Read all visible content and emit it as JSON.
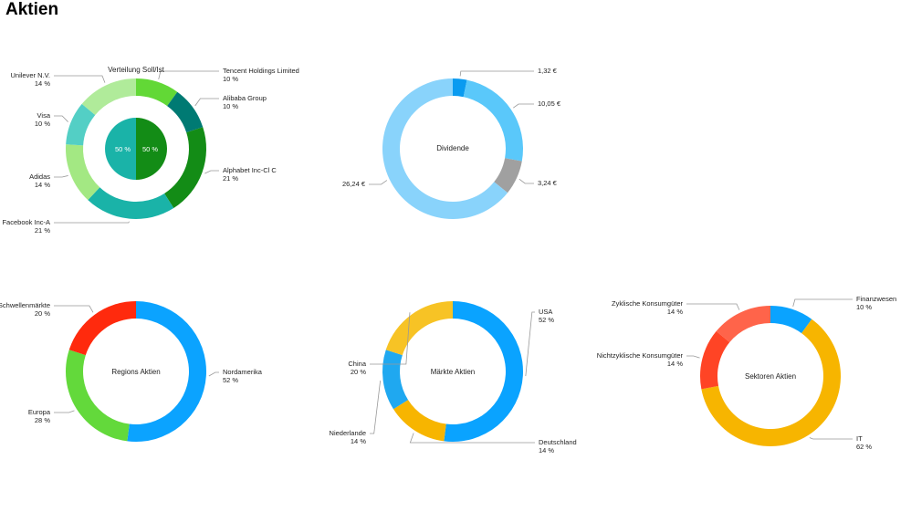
{
  "page_title": "Aktien",
  "chart_data": [
    {
      "type": "donut",
      "title": "Verteilung Soll/Ist",
      "slices": [
        {
          "label": "Tencent Holdings Limited",
          "value": 10,
          "value_label": "10 %",
          "color": "#62d836"
        },
        {
          "label": "Alibaba Group",
          "value": 10,
          "value_label": "10 %",
          "color": "#007a73"
        },
        {
          "label": "Alphabet Inc-Cl C",
          "value": 21,
          "value_label": "21 %",
          "color": "#138c16"
        },
        {
          "label": "Facebook Inc-A",
          "value": 21,
          "value_label": "21 %",
          "color": "#1ab3a8"
        },
        {
          "label": "Adidas",
          "value": 14,
          "value_label": "14 %",
          "color": "#a3e883"
        },
        {
          "label": "Visa",
          "value": 10,
          "value_label": "10 %",
          "color": "#53cfc5"
        },
        {
          "label": "Unilever N.V.",
          "value": 14,
          "value_label": "14 %",
          "color": "#b0eb9a"
        }
      ],
      "inner": [
        {
          "value": 50,
          "value_label": "50 %",
          "color": "#138c16"
        },
        {
          "value": 50,
          "value_label": "50 %",
          "color": "#1ab3a8"
        }
      ]
    },
    {
      "type": "donut",
      "title": "Dividende",
      "slices": [
        {
          "value": 1.32,
          "value_label": "1,32 €",
          "color": "#0a9bf0"
        },
        {
          "value": 10.05,
          "value_label": "10,05 €",
          "color": "#5ac8fa"
        },
        {
          "value": 3.24,
          "value_label": "3,24 €",
          "color": "#a0a0a0"
        },
        {
          "value": 26.24,
          "value_label": "26,24 €",
          "color": "#89d3fb"
        }
      ]
    },
    {
      "type": "donut",
      "title": "Regions Aktien",
      "slices": [
        {
          "label": "Nordamerika",
          "value": 52,
          "value_label": "52 %",
          "color": "#0ba3ff"
        },
        {
          "label": "Europa",
          "value": 28,
          "value_label": "28 %",
          "color": "#63d93b"
        },
        {
          "label": "Schwellenmärkte",
          "value": 20,
          "value_label": "20 %",
          "color": "#ff2a0d"
        }
      ]
    },
    {
      "type": "donut",
      "title": "Märkte Aktien",
      "slices": [
        {
          "label": "USA",
          "value": 52,
          "value_label": "52 %",
          "color": "#0aa3ff"
        },
        {
          "label": "Deutschland",
          "value": 14,
          "value_label": "14 %",
          "color": "#f7b500"
        },
        {
          "label": "Niederlande",
          "value": 14,
          "value_label": "14 %",
          "color": "#1fa8f0"
        },
        {
          "label": "China",
          "value": 20,
          "value_label": "20 %",
          "color": "#f7c325"
        }
      ]
    },
    {
      "type": "donut",
      "title": "Sektoren Aktien",
      "slices": [
        {
          "label": "Finanzwesen",
          "value": 10,
          "value_label": "10 %",
          "color": "#0aa3ff"
        },
        {
          "label": "IT",
          "value": 62,
          "value_label": "62 %",
          "color": "#f7b500"
        },
        {
          "label": "Nichtzyklische Konsumgüter",
          "value": 14,
          "value_label": "14 %",
          "color": "#ff4425"
        },
        {
          "label": "Zyklische Konsumgüter",
          "value": 14,
          "value_label": "14 %",
          "color": "#ff644a"
        }
      ]
    }
  ]
}
